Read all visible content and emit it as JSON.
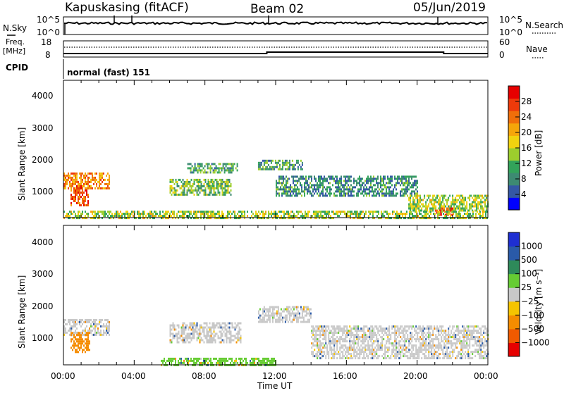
{
  "header": {
    "station": "Kapuskasing (fitACF)",
    "beam": "Beam 02",
    "date": "05/Jun/2019"
  },
  "top_panels": {
    "nsky_label": "N.Sky",
    "nsearch_label": "N.Search",
    "freq_label_1": "Freq.",
    "freq_label_2": "[MHz]",
    "nave_label": "Nave",
    "cpid_label": "CPID",
    "cpid_text": "normal (fast) 151",
    "noise_left_ticks": [
      "10^5",
      "10^0"
    ],
    "noise_right_ticks": [
      "10^5",
      "10^0"
    ],
    "freq_left_ticks": [
      "18",
      "8"
    ],
    "freq_right_ticks": [
      "60",
      "0"
    ]
  },
  "x_axis": {
    "label": "Time UT",
    "ticks": [
      "00:00",
      "04:00",
      "08:00",
      "12:00",
      "16:00",
      "20:00",
      "00:00"
    ]
  },
  "power_panel": {
    "ylabel": "Slant Range [km]",
    "y_ticks": [
      "4000",
      "3000",
      "2000",
      "1000"
    ],
    "colorbar_label": "Power [dB]",
    "colorbar_ticks": [
      "28",
      "24",
      "20",
      "16",
      "12",
      "8",
      "4"
    ],
    "colors": [
      "#0000ff",
      "#3457a5",
      "#3d8a72",
      "#32a35a",
      "#9ccd2d",
      "#f0d20f",
      "#f5a50a",
      "#f06e0a",
      "#ee3a0a",
      "#e60000"
    ]
  },
  "velocity_panel": {
    "ylabel": "Slant Range [km]",
    "y_ticks": [
      "4000",
      "3000",
      "2000",
      "1000"
    ],
    "colorbar_label": "Velocity [m s⁻¹]",
    "colorbar_ticks": [
      "1000",
      "500",
      "100",
      "25",
      "−25",
      "−100",
      "−500",
      "−1000"
    ],
    "colors": [
      "#1e2fd2",
      "#2a5aa8",
      "#2e8a5a",
      "#66cc33",
      "#c8c8c8",
      "#f5c400",
      "#f58c00",
      "#f05a00",
      "#e60000"
    ]
  },
  "chart_data": [
    {
      "type": "heatmap",
      "title": "Power",
      "xlabel": "Time UT",
      "ylabel": "Slant Range [km]",
      "x_range_hours": [
        0,
        24
      ],
      "ylim": [
        180,
        4500
      ],
      "colorbar": {
        "label": "Power [dB]",
        "range": [
          0,
          30
        ],
        "ticks": [
          4,
          8,
          12,
          16,
          20,
          24,
          28
        ]
      },
      "regions": [
        {
          "t": [
            0.0,
            2.6
          ],
          "r": [
            1100,
            1600
          ],
          "power_db": 22
        },
        {
          "t": [
            0.4,
            1.4
          ],
          "r": [
            600,
            1200
          ],
          "power_db": 24
        },
        {
          "t": [
            6.0,
            9.5
          ],
          "r": [
            900,
            1400
          ],
          "power_db": 12
        },
        {
          "t": [
            7.0,
            9.8
          ],
          "r": [
            1600,
            1900
          ],
          "power_db": 10
        },
        {
          "t": [
            11.0,
            13.5
          ],
          "r": [
            1700,
            2000
          ],
          "power_db": 10
        },
        {
          "t": [
            12.0,
            20.0
          ],
          "r": [
            900,
            1500
          ],
          "power_db": 8
        },
        {
          "t": [
            19.5,
            24.0
          ],
          "r": [
            400,
            900
          ],
          "power_db": 14
        },
        {
          "t": [
            21.0,
            22.0
          ],
          "r": [
            250,
            500
          ],
          "power_db": 26
        },
        {
          "t": [
            0.0,
            24.0
          ],
          "r": [
            180,
            400
          ],
          "power_db": 14
        }
      ]
    },
    {
      "type": "heatmap",
      "title": "Velocity",
      "xlabel": "Time UT",
      "ylabel": "Slant Range [km]",
      "x_range_hours": [
        0,
        24
      ],
      "ylim": [
        180,
        4500
      ],
      "colorbar": {
        "label": "Velocity [m s⁻¹]",
        "range": [
          -1000,
          1000
        ],
        "ticks": [
          1000,
          500,
          100,
          25,
          -25,
          -100,
          -500,
          -1000
        ]
      },
      "regions": [
        {
          "t": [
            0.0,
            2.6
          ],
          "r": [
            1100,
            1600
          ],
          "velocity": 0
        },
        {
          "t": [
            0.4,
            1.5
          ],
          "r": [
            600,
            1200
          ],
          "velocity": -300
        },
        {
          "t": [
            6.0,
            10.0
          ],
          "r": [
            900,
            1500
          ],
          "velocity": 0
        },
        {
          "t": [
            11.0,
            14.0
          ],
          "r": [
            1500,
            2000
          ],
          "velocity": 0
        },
        {
          "t": [
            14.0,
            24.0
          ],
          "r": [
            400,
            1400
          ],
          "velocity": 0
        },
        {
          "t": [
            5.5,
            12.0
          ],
          "r": [
            180,
            400
          ],
          "velocity": 60
        }
      ]
    },
    {
      "type": "line",
      "title": "N.Sky / N.Search",
      "xlabel": "Time UT",
      "series": [],
      "scale": "log",
      "ylim": [
        1,
        100000
      ]
    },
    {
      "type": "line",
      "title": "Freq. / Nave",
      "series": [],
      "ylim_left": [
        8,
        18
      ],
      "ylim_right": [
        0,
        60
      ],
      "freq_mhz": [
        {
          "t": [
            0,
            11.5
          ],
          "value": 10.5
        },
        {
          "t": [
            11.5,
            21.5
          ],
          "value": 11.0
        },
        {
          "t": [
            21.5,
            24
          ],
          "value": 10.5
        }
      ],
      "nave": 15
    }
  ]
}
